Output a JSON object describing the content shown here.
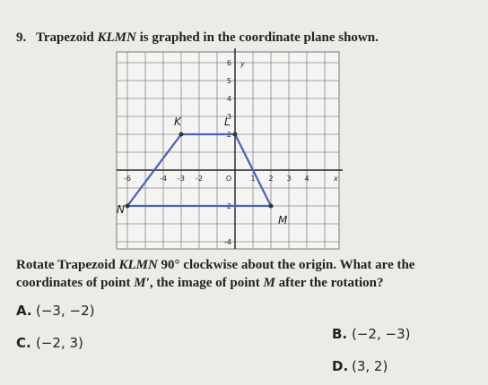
{
  "question": {
    "number": "9.",
    "parts": [
      "Trapezoid ",
      "KLMN",
      " is graphed in the coordinate plane shown."
    ]
  },
  "graph": {
    "x_label": "x",
    "y_label": "y",
    "origin_label": "O",
    "xticks": [
      -6,
      -4,
      -3,
      -2,
      1,
      2,
      3,
      4
    ],
    "yticks": [
      6,
      5,
      4,
      3,
      2,
      -2,
      -4
    ],
    "points": [
      "K",
      "L",
      "M",
      "N"
    ]
  },
  "prompt": {
    "lines": [
      [
        "Rotate Trapezoid ",
        "KLMN",
        " 90° clockwise about the origin. What are the"
      ],
      [
        "coordinates of point ",
        "M′",
        ", the image of point ",
        "M",
        " after the rotation?"
      ]
    ]
  },
  "options": [
    {
      "letter": "A.",
      "answer": "(−3, −2)"
    },
    {
      "letter": "B.",
      "answer": "(−2, −3)"
    },
    {
      "letter": "C.",
      "answer": "(−2, 3)"
    },
    {
      "letter": "D.",
      "answer": "(3, 2)"
    }
  ]
}
